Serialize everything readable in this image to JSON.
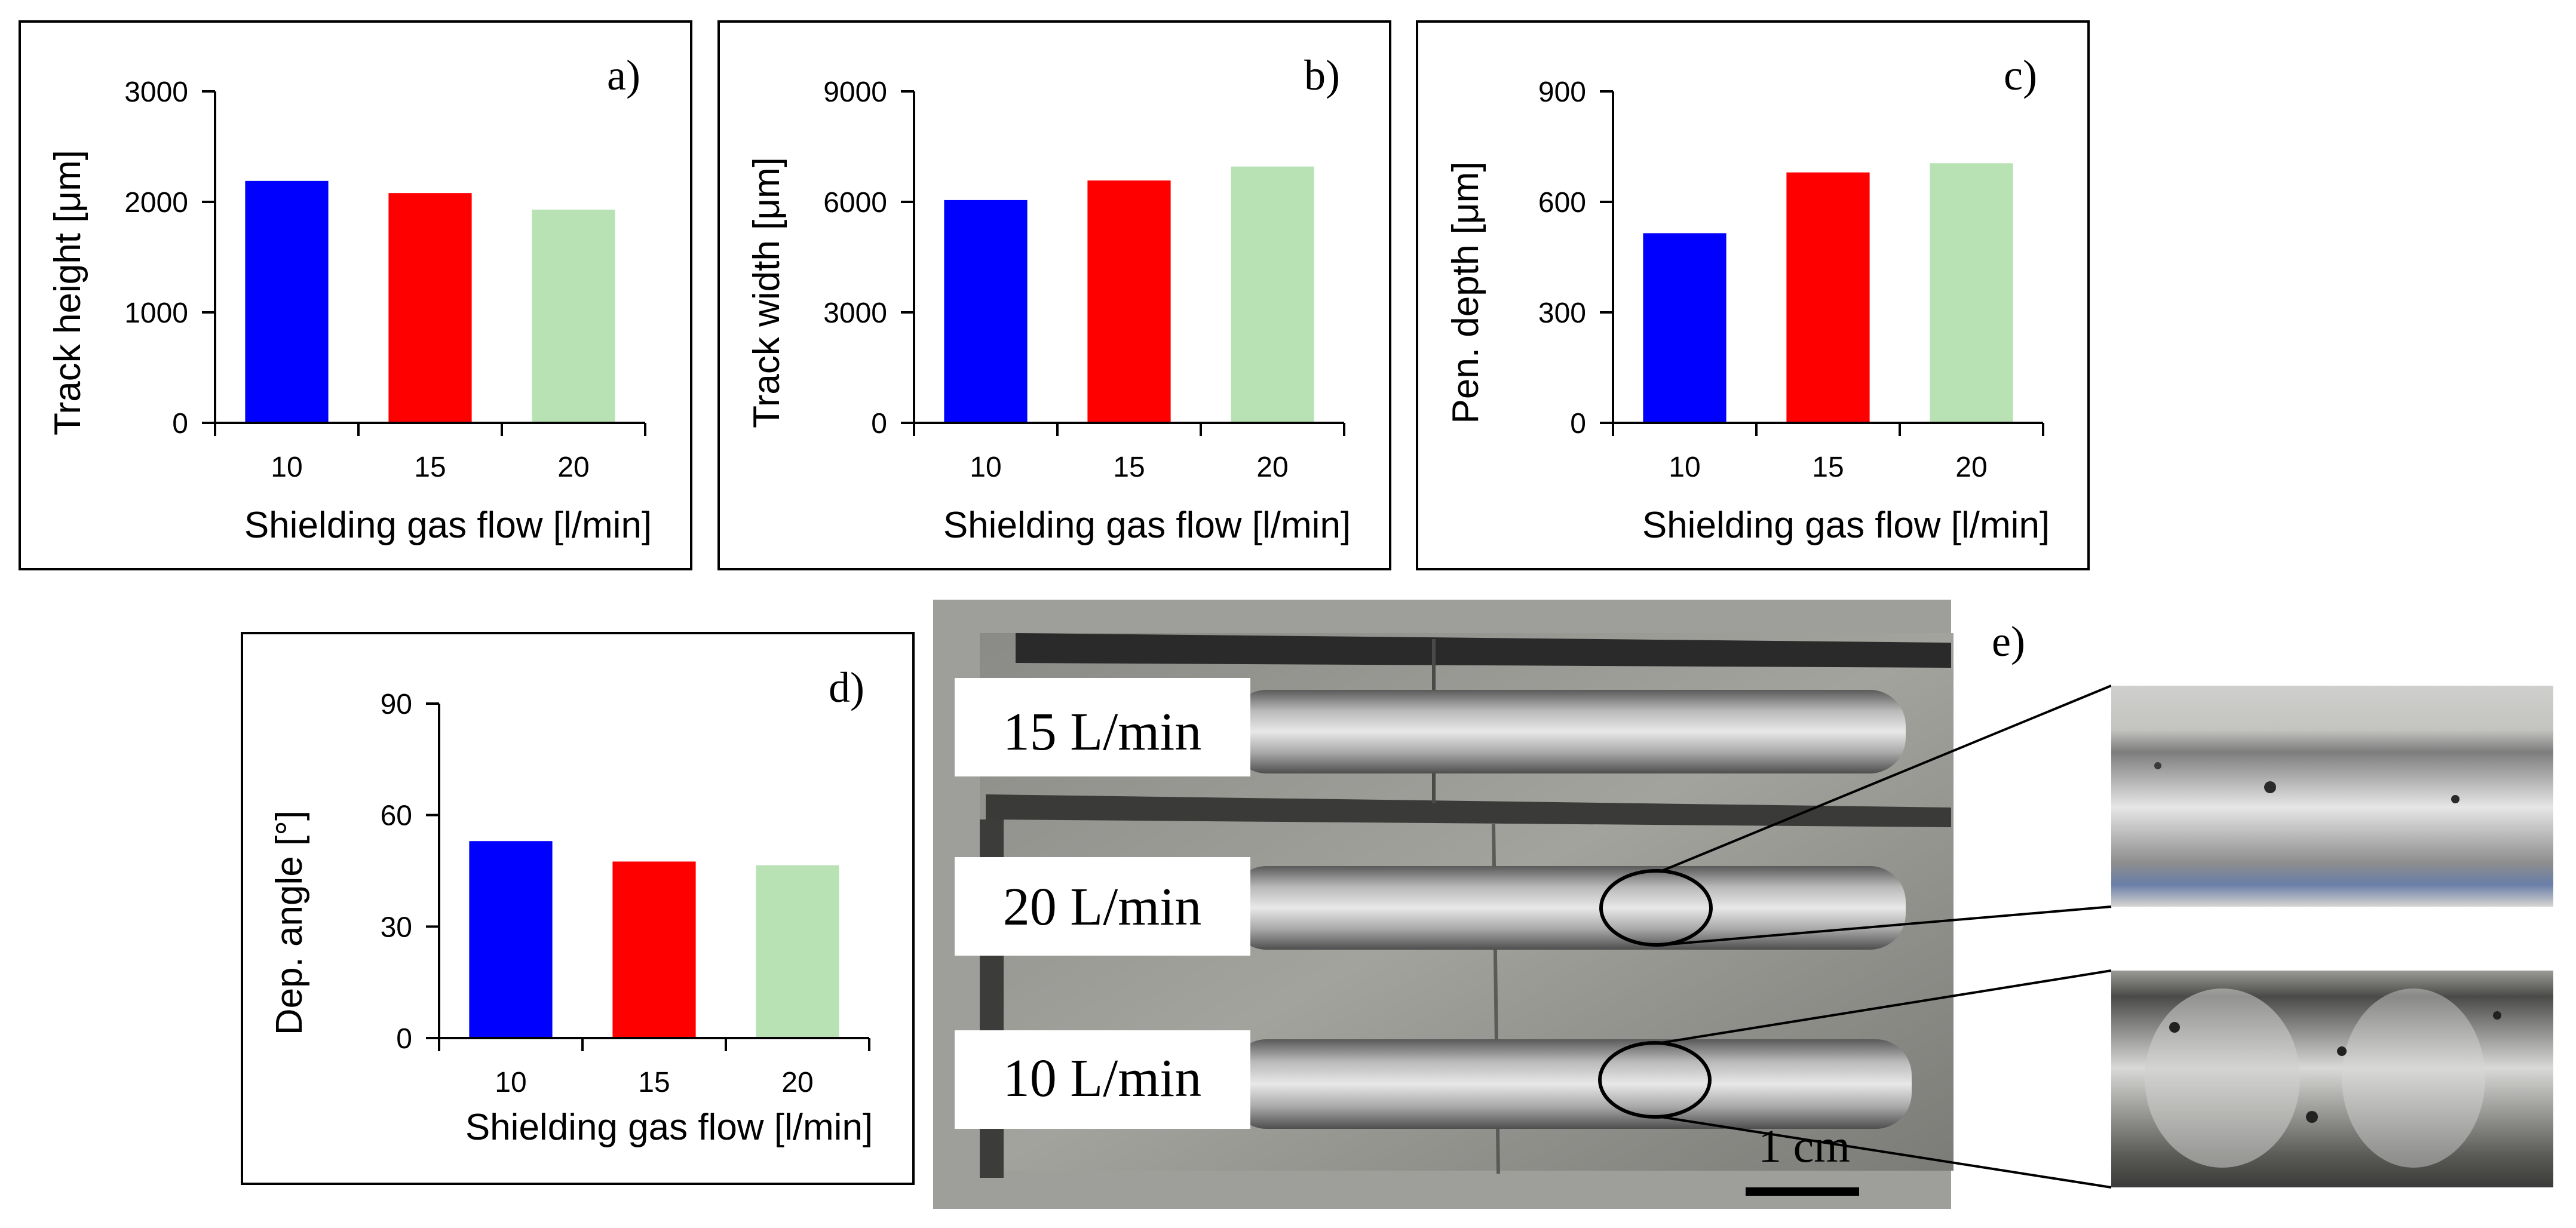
{
  "colors": {
    "c10": "#0000ff",
    "c15": "#ff0000",
    "c20": "#b8e2b4"
  },
  "chart_data": [
    {
      "panel_label": "a)",
      "type": "bar",
      "categories": [
        "10",
        "15",
        "20"
      ],
      "values": [
        2190,
        2080,
        1930
      ],
      "ticks": [
        "0",
        "1000",
        "2000",
        "3000"
      ],
      "ylim": [
        0,
        3000
      ],
      "xlabel": "Shielding gas flow [l/min]",
      "ylabel": "Track height [μm]"
    },
    {
      "panel_label": "b)",
      "type": "bar",
      "categories": [
        "10",
        "15",
        "20"
      ],
      "values": [
        6050,
        6580,
        6960
      ],
      "ticks": [
        "0",
        "3000",
        "6000",
        "9000"
      ],
      "ylim": [
        0,
        9000
      ],
      "xlabel": "Shielding gas flow [l/min]",
      "ylabel": "Track width [μm]"
    },
    {
      "panel_label": "c)",
      "type": "bar",
      "categories": [
        "10",
        "15",
        "20"
      ],
      "values": [
        515,
        680,
        705
      ],
      "ticks": [
        "0",
        "300",
        "600",
        "900"
      ],
      "ylim": [
        0,
        900
      ],
      "xlabel": "Shielding gas flow [l/min]",
      "ylabel": "Pen. depth [μm]"
    },
    {
      "panel_label": "d)",
      "type": "bar",
      "categories": [
        "10",
        "15",
        "20"
      ],
      "values": [
        53,
        47.5,
        46.5
      ],
      "ticks": [
        "0",
        "30",
        "60",
        "90"
      ],
      "ylim": [
        0,
        90
      ],
      "xlabel": "Shielding gas flow [l/min]",
      "ylabel": "Dep. angle [°]"
    }
  ],
  "photo": {
    "panel_label": "e)",
    "labels": [
      "15 L/min",
      "20 L/min",
      "10 L/min"
    ],
    "scale_label": "1 cm"
  }
}
